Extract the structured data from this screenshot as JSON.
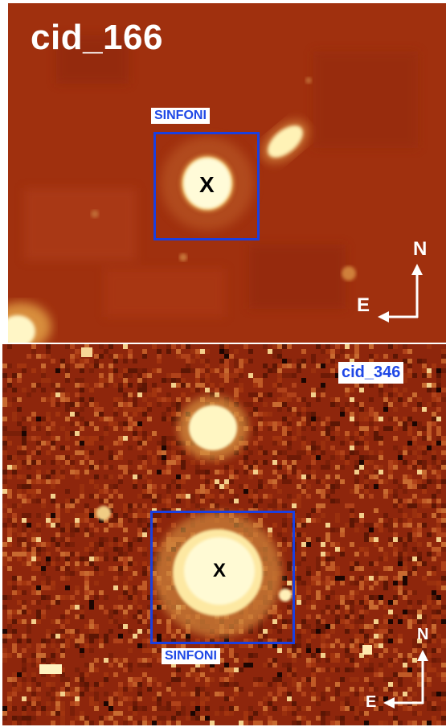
{
  "colors": {
    "background": "#9c2a0c",
    "source_core": "#fff8c8",
    "source_halo": "#e6a84a",
    "box_blue": "#1a3fe0",
    "label_blue": "#1f48e6",
    "compass_white": "#ffffff"
  },
  "top_panel": {
    "title": "cid_166",
    "box_label": "SINFONI",
    "marker": "X",
    "compass_north": "N",
    "compass_east": "E"
  },
  "bottom_panel": {
    "title": "cid_346",
    "box_label": "SINFONI",
    "marker": "X",
    "compass_north": "N",
    "compass_east": "E"
  }
}
